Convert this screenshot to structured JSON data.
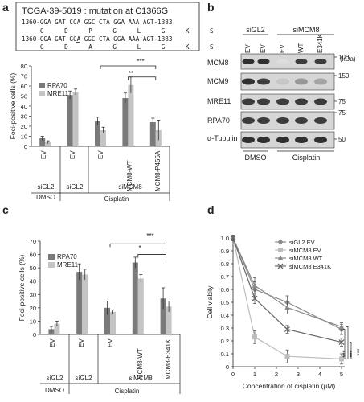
{
  "panels": {
    "a": {
      "letter": "a",
      "mutation": {
        "title": "TCGA-39-5019 : mutation at C1366G",
        "wt_dna": "1360-GGA GAT CCA GGC CTA GGA AAA AGT-1383",
        "wt_aa": "G D P G L G K S",
        "mut_dna": "1360-GGA GAT GCA GGC CTA GGA AAA AGT-1383",
        "mut_aa": "G D A G L G K S"
      },
      "stat_labels": [
        "**",
        "***"
      ],
      "sample_labels": [
        "EV",
        "EV",
        "EV",
        "MCM8-WT",
        "MCM8-P456A"
      ],
      "group_labels": [
        "siGL2",
        "siGL2",
        "siMCM8",
        "DMSO",
        "Cisplatin"
      ]
    },
    "b": {
      "letter": "b",
      "header_groups": [
        "siGL2",
        "siMCM8"
      ],
      "lane_labels": [
        "EV",
        "EV",
        "EV",
        "WT",
        "E341K"
      ],
      "kda_label": "(kDa)",
      "rows": [
        {
          "label": "MCM8",
          "markers": [
            "100"
          ]
        },
        {
          "label": "MCM9",
          "markers": [
            "150"
          ]
        },
        {
          "label": "MRE11",
          "markers": [
            "75"
          ]
        },
        {
          "label": "RPA70",
          "markers": [
            "75"
          ]
        },
        {
          "label": "α-Tubulin",
          "markers": [
            "50"
          ]
        }
      ],
      "treatments": [
        "DMSO",
        "Cisplatin"
      ]
    },
    "c": {
      "letter": "c",
      "stat_labels": [
        "*",
        "***"
      ],
      "sample_labels": [
        "EV",
        "EV",
        "EV",
        "MCM8-WT",
        "MCM8-E341K"
      ],
      "group_labels": [
        "siGL2",
        "siGL2",
        "siMCM8",
        "DMSO",
        "Cisplatin"
      ]
    },
    "d": {
      "letter": "d",
      "stat_labels": [
        "***",
        "***",
        "***"
      ]
    }
  },
  "colors": {
    "dark": "#7a7a7a",
    "light": "#c4c4c4",
    "siMCM8_EV": "#bdbdbd"
  },
  "chart_data": [
    {
      "id": "a",
      "type": "bar",
      "ylabel": "Foci-positive cells (%)",
      "ylim": [
        0,
        80
      ],
      "yticks": [
        0,
        10,
        20,
        30,
        40,
        50,
        60,
        70,
        80
      ],
      "categories": [
        "EV",
        "EV",
        "EV",
        "MCM8-WT",
        "MCM8-P456A"
      ],
      "series": [
        {
          "name": "RPA70",
          "values": [
            8,
            51,
            25,
            48,
            24
          ],
          "errors": [
            2,
            4,
            4,
            5,
            4
          ]
        },
        {
          "name": "MRE11",
          "values": [
            4,
            54,
            16,
            61,
            16
          ],
          "errors": [
            1.5,
            3,
            3,
            8,
            10
          ]
        }
      ],
      "legend": "top-left"
    },
    {
      "id": "c",
      "type": "bar",
      "ylabel": "Foci-positive cells (%)",
      "ylim": [
        0,
        70
      ],
      "yticks": [
        0,
        10,
        20,
        30,
        40,
        50,
        60,
        70
      ],
      "categories": [
        "EV",
        "EV",
        "EV",
        "MCM8-WT",
        "MCM8-E341K"
      ],
      "series": [
        {
          "name": "RPA70",
          "values": [
            4,
            47,
            20,
            54,
            27
          ],
          "errors": [
            2,
            6,
            5,
            4,
            8
          ]
        },
        {
          "name": "MRE11",
          "values": [
            8,
            45,
            17,
            42,
            21
          ],
          "errors": [
            2,
            4,
            1.5,
            3,
            4
          ]
        }
      ],
      "legend": "top-left"
    },
    {
      "id": "d",
      "type": "line",
      "xlabel": "Concentration of cisplatin (μM)",
      "ylabel": "Cell viabity",
      "xlim": [
        0,
        5
      ],
      "ylim": [
        0,
        1.0
      ],
      "xticks": [
        0,
        1,
        2,
        3,
        4,
        5
      ],
      "yticks": [
        0,
        0.1,
        0.2,
        0.3,
        0.4,
        0.5,
        0.6,
        0.7,
        0.8,
        0.9,
        1.0
      ],
      "x": [
        0,
        1,
        2.5,
        5
      ],
      "series": [
        {
          "name": "siGL2 EV",
          "values": [
            1.0,
            0.6,
            0.5,
            0.29
          ],
          "errors": [
            0.02,
            0.06,
            0.05,
            0.04
          ],
          "marker": "diamond",
          "color": "#8a8a8a"
        },
        {
          "name": "siMCM8 EV",
          "values": [
            1.0,
            0.23,
            0.08,
            0.06
          ],
          "errors": [
            0.02,
            0.05,
            0.05,
            0.04
          ],
          "marker": "square",
          "color": "#bdbdbd"
        },
        {
          "name": "siMCM8 WT",
          "values": [
            1.0,
            0.63,
            0.46,
            0.31
          ],
          "errors": [
            0.02,
            0.06,
            0.05,
            0.03
          ],
          "marker": "triangle",
          "color": "#8a8a8a"
        },
        {
          "name": "siMCM8 E341K",
          "values": [
            1.0,
            0.53,
            0.29,
            0.19
          ],
          "errors": [
            0.02,
            0.04,
            0.03,
            0.03
          ],
          "marker": "x",
          "color": "#666666"
        }
      ],
      "legend": "top-right"
    }
  ]
}
